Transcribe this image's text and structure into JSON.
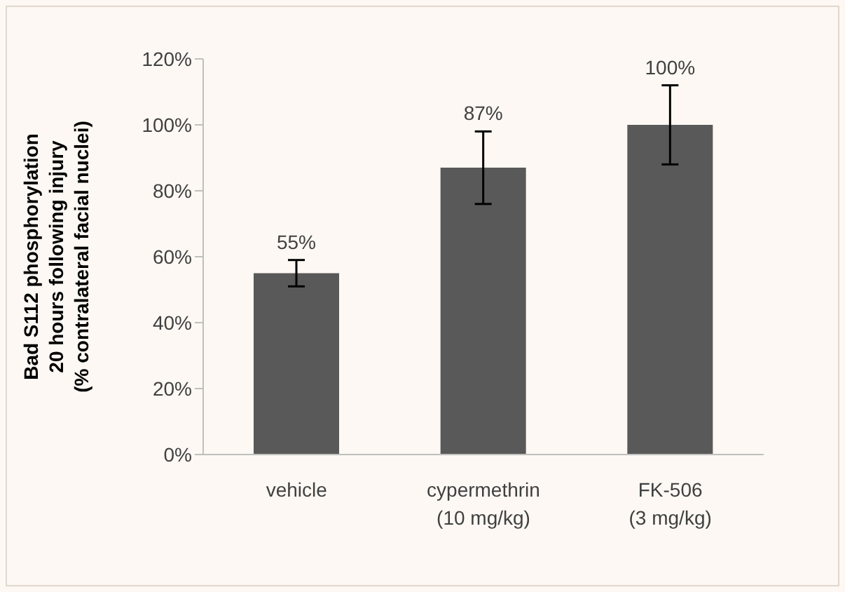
{
  "chart_data": {
    "type": "bar",
    "ylabel": "Bad S112 phosphorylation\n20 hours following injury\n(% contralateral facial nuclei)",
    "categories": [
      "vehicle",
      "cypermethrin\n(10 mg/kg)",
      "FK-506\n(3 mg/kg)"
    ],
    "values": [
      55,
      87,
      100
    ],
    "errors": [
      4,
      11,
      12
    ],
    "value_labels": [
      "55%",
      "87%",
      "100%"
    ],
    "color": "#595959",
    "ylim": [
      0,
      120
    ],
    "yticks": [
      {
        "value": 0,
        "label": "0%"
      },
      {
        "value": 20,
        "label": "20%"
      },
      {
        "value": 40,
        "label": "40%"
      },
      {
        "value": 60,
        "label": "60%"
      },
      {
        "value": 80,
        "label": "80%"
      },
      {
        "value": 100,
        "label": "100%"
      },
      {
        "value": 120,
        "label": "120%"
      }
    ],
    "grid": false,
    "legend": false
  }
}
